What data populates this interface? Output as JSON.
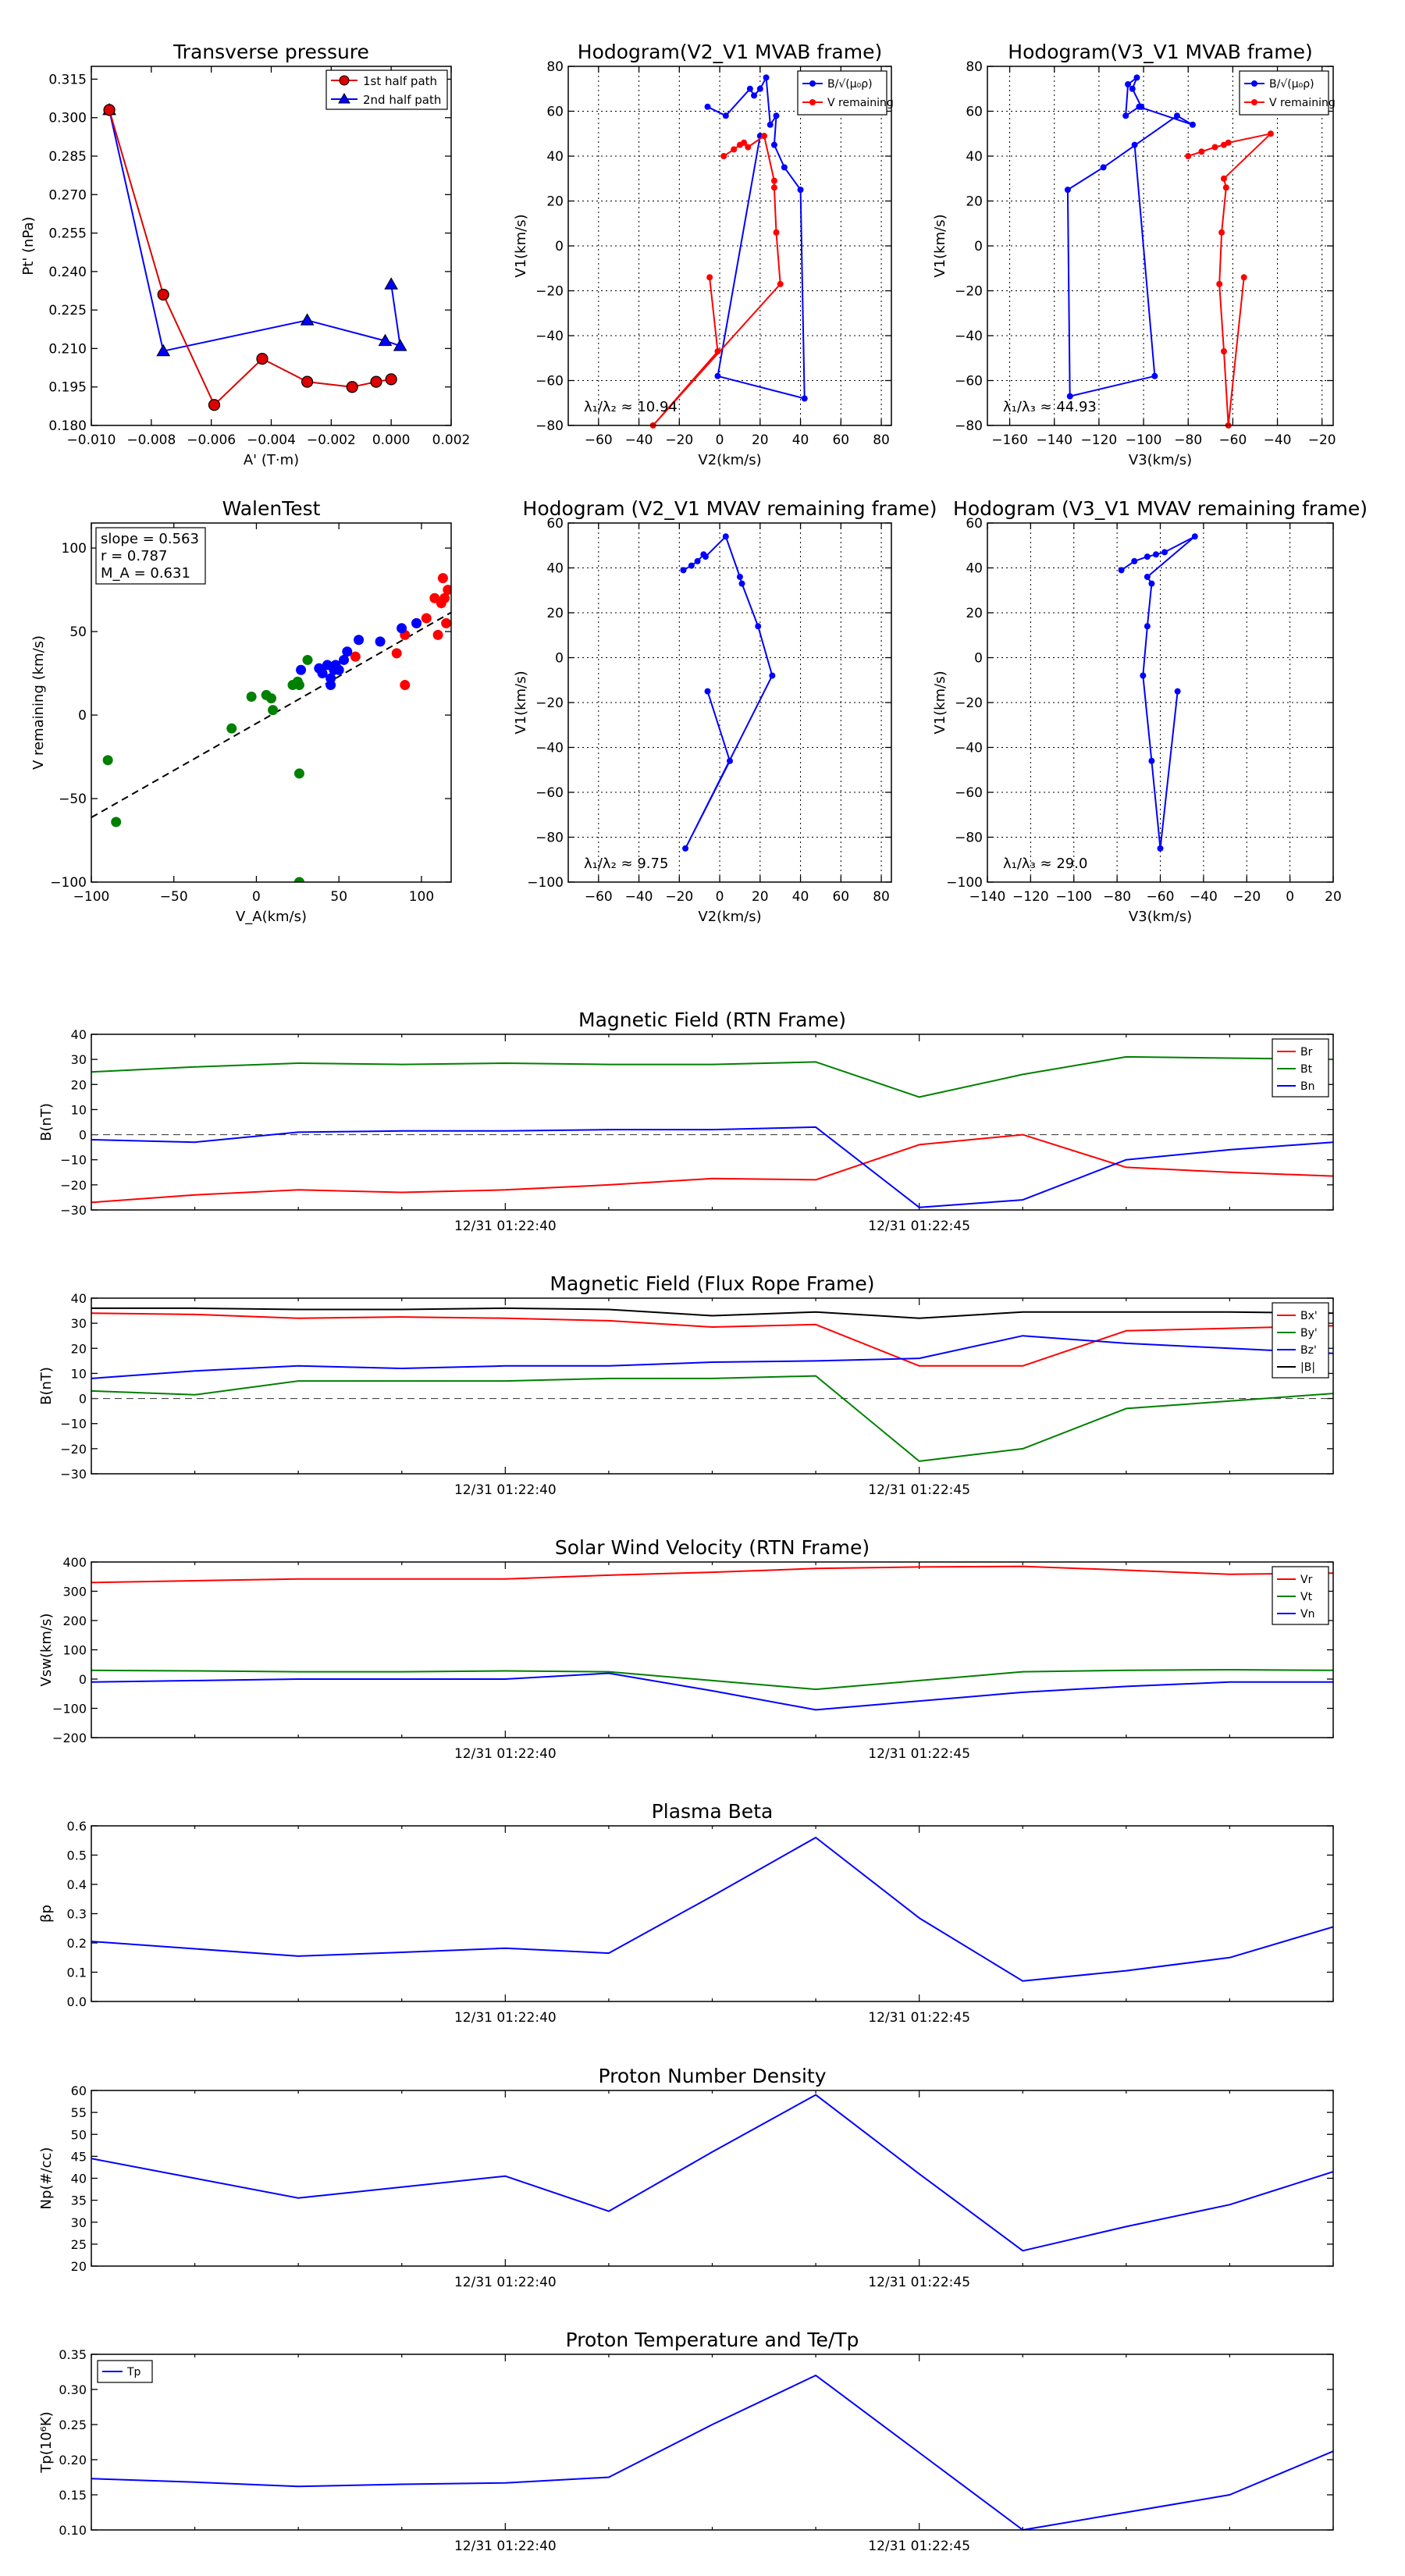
{
  "figure": {
    "colors": {
      "red": "#ff0000",
      "red_bar": "#dd0000",
      "blue": "#0000ff",
      "green": "#008000",
      "black": "#000000"
    }
  },
  "chart_data": [
    {
      "id": "transverse",
      "type": "line",
      "title": "Transverse pressure",
      "xlabel": "A' (T·m)",
      "ylabel": "Pt' (nPa)",
      "xlim": [
        -0.01,
        0.002
      ],
      "ylim": [
        0.18,
        0.32
      ],
      "xticks": [
        -0.01,
        -0.008,
        -0.006,
        -0.004,
        -0.002,
        0.0,
        0.002
      ],
      "xtick_labels": [
        "−0.010",
        "−0.008",
        "−0.006",
        "−0.004",
        "−0.002",
        "0.000",
        "0.002"
      ],
      "yticks": [
        0.18,
        0.195,
        0.21,
        0.225,
        0.24,
        0.255,
        0.27,
        0.285,
        0.3,
        0.315
      ],
      "ytick_labels": [
        "0.180",
        "0.195",
        "0.210",
        "0.225",
        "0.240",
        "0.255",
        "0.270",
        "0.285",
        "0.300",
        "0.315"
      ],
      "legend": [
        "1st half path",
        "2nd half path"
      ],
      "series": [
        {
          "name": "1st half path",
          "color": "red",
          "marker": "circle",
          "x": [
            -0.0094,
            -0.0076,
            -0.0059,
            -0.0043,
            -0.0028,
            -0.0013,
            -0.0005,
            0.0
          ],
          "y": [
            0.303,
            0.231,
            0.188,
            0.206,
            0.197,
            0.195,
            0.197,
            0.198
          ]
        },
        {
          "name": "2nd half path",
          "color": "blue",
          "marker": "triangle",
          "x": [
            -0.0094,
            -0.0076,
            -0.0028,
            -0.0002,
            0.0003,
            0.0
          ],
          "y": [
            0.303,
            0.209,
            0.221,
            0.213,
            0.211,
            0.235
          ]
        }
      ]
    },
    {
      "id": "hodo1",
      "type": "line",
      "title": "Hodogram(V2_V1 MVAB frame)",
      "xlabel": "V2(km/s)",
      "ylabel": "V1(km/s)",
      "xlim": [
        -75,
        85
      ],
      "ylim": [
        -80,
        80
      ],
      "xticks": [
        -60,
        -40,
        -20,
        0,
        20,
        40,
        60,
        80
      ],
      "yticks": [
        -80,
        -60,
        -40,
        -20,
        0,
        20,
        40,
        60,
        80
      ],
      "legend": [
        "B/√(μ₀ρ)",
        "V remaining"
      ],
      "annotation": "λ₁/λ₂ ≈ 10.94",
      "series": [
        {
          "name": "B",
          "color": "blue",
          "marker": "dot",
          "x": [
            -6,
            3,
            15,
            17,
            20,
            23,
            25,
            28,
            27,
            32,
            40,
            42,
            -1,
            20
          ],
          "y": [
            62,
            58,
            70,
            67,
            70,
            75,
            54,
            58,
            45,
            35,
            25,
            -68,
            -58,
            49
          ]
        },
        {
          "name": "V remaining",
          "color": "red",
          "marker": "dot",
          "x": [
            2,
            7,
            10,
            12,
            14,
            22,
            27,
            27,
            28,
            30,
            -33,
            -1,
            -5
          ],
          "y": [
            40,
            43,
            45,
            46,
            44,
            49,
            29,
            26,
            6,
            -17,
            -80,
            -47,
            -14
          ]
        }
      ]
    },
    {
      "id": "hodo2",
      "type": "line",
      "title": "Hodogram(V3_V1 MVAB frame)",
      "xlabel": "V3(km/s)",
      "ylabel": "V1(km/s)",
      "xlim": [
        -170,
        -15
      ],
      "ylim": [
        -80,
        80
      ],
      "xticks": [
        -160,
        -140,
        -120,
        -100,
        -80,
        -60,
        -40,
        -20
      ],
      "xtick_labels": [
        "−160",
        "−140",
        "−120",
        "−100",
        "−80",
        "−60",
        "−40",
        "−20"
      ],
      "yticks": [
        -80,
        -60,
        -40,
        -20,
        0,
        20,
        40,
        60,
        80
      ],
      "legend": [
        "B/√(μ₀ρ)",
        "V remaining"
      ],
      "annotation": "λ₁/λ₃ ≈ 44.93",
      "series": [
        {
          "name": "B",
          "color": "blue",
          "marker": "dot",
          "x": [
            -101,
            -105,
            -103,
            -107,
            -108,
            -102,
            -78,
            -85,
            -118,
            -134,
            -133,
            -95,
            -104
          ],
          "y": [
            62,
            70,
            75,
            72,
            58,
            62,
            54,
            58,
            35,
            25,
            -67,
            -58,
            45
          ]
        },
        {
          "name": "V remaining",
          "color": "red",
          "marker": "dot",
          "x": [
            -80,
            -74,
            -68,
            -64,
            -62,
            -43,
            -64,
            -63,
            -65,
            -66,
            -64,
            -62,
            -55
          ],
          "y": [
            40,
            42,
            44,
            45,
            46,
            50,
            30,
            26,
            6,
            -17,
            -47,
            -80,
            -14
          ]
        }
      ]
    },
    {
      "id": "walen",
      "type": "scatter",
      "title": "WalenTest",
      "xlabel": "V_A(km/s)",
      "ylabel": "V remaining (km/s)",
      "xlim": [
        -100,
        118
      ],
      "ylim": [
        -100,
        115
      ],
      "xticks": [
        -100,
        -50,
        0,
        50,
        100
      ],
      "xtick_labels": [
        "−100",
        "−50",
        "0",
        "50",
        "100"
      ],
      "yticks": [
        -100,
        -50,
        0,
        50,
        100
      ],
      "ytick_labels": [
        "−100",
        "−50",
        "0",
        "50",
        "100"
      ],
      "annotations": [
        "slope = 0.563",
        "r = 0.787",
        "M_A = 0.631"
      ],
      "fit_line": {
        "slope": 0.563,
        "intercept": -5
      },
      "series": [
        {
          "name": "red",
          "color": "red",
          "x": [
            113,
            114,
            116,
            112,
            108,
            103,
            97,
            90,
            85,
            115,
            110,
            60,
            90
          ],
          "y": [
            82,
            70,
            75,
            67,
            70,
            58,
            55,
            48,
            37,
            55,
            48,
            35,
            18
          ]
        },
        {
          "name": "blue",
          "color": "blue",
          "x": [
            27,
            38,
            40,
            43,
            45,
            47,
            48,
            50,
            53,
            55,
            62,
            75,
            88,
            97,
            45
          ],
          "y": [
            27,
            28,
            25,
            30,
            22,
            27,
            30,
            27,
            33,
            38,
            45,
            44,
            52,
            55,
            18
          ]
        },
        {
          "name": "green",
          "color": "green",
          "x": [
            -90,
            -85,
            -15,
            -3,
            6,
            9,
            10,
            22,
            25,
            26,
            31,
            26,
            26
          ],
          "y": [
            -27,
            -64,
            -8,
            11,
            12,
            10,
            3,
            18,
            20,
            18,
            33,
            -35,
            -100
          ]
        }
      ]
    },
    {
      "id": "hodo3",
      "type": "line",
      "title": "Hodogram (V2_V1 MVAV remaining frame)",
      "xlabel": "V2(km/s)",
      "ylabel": "V1(km/s)",
      "xlim": [
        -75,
        85
      ],
      "ylim": [
        -100,
        60
      ],
      "xticks": [
        -60,
        -40,
        -20,
        0,
        20,
        40,
        60,
        80
      ],
      "yticks": [
        -100,
        -80,
        -60,
        -40,
        -20,
        0,
        20,
        40,
        60
      ],
      "annotation": "λ₁/λ₂ ≈ 9.75",
      "series": [
        {
          "name": "V",
          "color": "blue",
          "marker": "dot",
          "x": [
            -18,
            -14,
            -11,
            -8,
            -7,
            3,
            10,
            11,
            19,
            26,
            -17,
            5,
            -6
          ],
          "y": [
            39,
            41,
            43,
            46,
            45,
            54,
            36,
            33,
            14,
            -8,
            -85,
            -46,
            -15
          ]
        }
      ]
    },
    {
      "id": "hodo4",
      "type": "line",
      "title": "Hodogram (V3_V1 MVAV remaining frame)",
      "xlabel": "V3(km/s)",
      "ylabel": "V1(km/s)",
      "xlim": [
        -140,
        20
      ],
      "ylim": [
        -100,
        60
      ],
      "xticks": [
        -140,
        -120,
        -100,
        -80,
        -60,
        -40,
        -20,
        0,
        20
      ],
      "xtick_labels": [
        "−140",
        "−120",
        "−100",
        "−80",
        "−60",
        "−40",
        "−20",
        "0",
        "20"
      ],
      "yticks": [
        -100,
        -80,
        -60,
        -40,
        -20,
        0,
        20,
        40,
        60
      ],
      "annotation": "λ₁/λ₃ ≈ 29.0",
      "series": [
        {
          "name": "V",
          "color": "blue",
          "marker": "dot",
          "x": [
            -78,
            -72,
            -66,
            -62,
            -58,
            -44,
            -66,
            -64,
            -66,
            -68,
            -64,
            -60,
            -52
          ],
          "y": [
            39,
            43,
            45,
            46,
            47,
            54,
            36,
            33,
            14,
            -8,
            -46,
            -85,
            -15
          ]
        }
      ]
    },
    {
      "id": "bfield_rtn",
      "type": "line",
      "title": "Magnetic Field (RTN Frame)",
      "ylabel": "B(nT)",
      "ylim": [
        -30,
        40
      ],
      "yticks": [
        -30,
        -20,
        -10,
        0,
        10,
        20,
        30,
        40
      ],
      "xtick_labels": [
        "12/31 01:22:40",
        "12/31 01:22:45"
      ],
      "zero_line": true,
      "x": [
        0,
        1,
        2,
        3,
        4,
        5,
        6,
        7,
        8,
        9,
        10,
        11,
        12
      ],
      "series": [
        {
          "name": "Br",
          "color": "red",
          "values": [
            -27,
            -24,
            -22,
            -23,
            -22,
            -20,
            -17.5,
            -18,
            -4,
            0,
            -13,
            -15,
            -16.5
          ]
        },
        {
          "name": "Bt",
          "color": "green",
          "values": [
            25,
            27,
            28.5,
            28,
            28.5,
            28,
            28,
            29,
            15,
            24,
            31,
            30.5,
            30
          ]
        },
        {
          "name": "Bn",
          "color": "blue",
          "values": [
            -2,
            -3,
            1,
            1.5,
            1.5,
            2,
            2,
            3,
            -29,
            -26,
            -10,
            -6,
            -3
          ]
        }
      ]
    },
    {
      "id": "bfield_fr",
      "type": "line",
      "title": "Magnetic Field (Flux Rope Frame)",
      "ylabel": "B(nT)",
      "ylim": [
        -30,
        40
      ],
      "yticks": [
        -30,
        -20,
        -10,
        0,
        10,
        20,
        30,
        40
      ],
      "xtick_labels": [
        "12/31 01:22:40",
        "12/31 01:22:45"
      ],
      "zero_line": true,
      "x": [
        0,
        1,
        2,
        3,
        4,
        5,
        6,
        7,
        8,
        9,
        10,
        11,
        12
      ],
      "series": [
        {
          "name": "Bx'",
          "color": "red",
          "values": [
            34,
            33.5,
            32,
            32.5,
            32,
            31,
            28.5,
            29.5,
            13,
            13,
            27,
            28,
            29
          ]
        },
        {
          "name": "By'",
          "color": "green",
          "values": [
            3,
            1.5,
            7,
            7,
            7,
            8,
            8,
            9,
            -25,
            -20,
            -4,
            -1,
            2
          ]
        },
        {
          "name": "Bz'",
          "color": "blue",
          "values": [
            8,
            11,
            13,
            12,
            13,
            13,
            14.5,
            15,
            16,
            25,
            22,
            20,
            18
          ]
        },
        {
          "name": "|B|",
          "color": "black",
          "values": [
            36,
            36,
            35.5,
            35.5,
            36,
            35.5,
            33,
            34.5,
            32,
            34.5,
            34.5,
            34.5,
            34
          ]
        }
      ]
    },
    {
      "id": "vsw",
      "type": "line",
      "title": "Solar Wind Velocity (RTN Frame)",
      "ylabel": "Vsw(km/s)",
      "ylim": [
        -200,
        400
      ],
      "yticks": [
        -200,
        -100,
        0,
        100,
        200,
        300,
        400
      ],
      "xtick_labels": [
        "12/31 01:22:40",
        "12/31 01:22:45"
      ],
      "zero_line": false,
      "x": [
        0,
        1,
        2,
        3,
        4,
        5,
        6,
        7,
        8,
        9,
        10,
        11,
        12
      ],
      "series": [
        {
          "name": "Vr",
          "color": "red",
          "values": [
            330,
            336,
            342,
            342,
            342,
            355,
            365,
            378,
            383,
            385,
            372,
            358,
            362
          ]
        },
        {
          "name": "Vt",
          "color": "green",
          "values": [
            30,
            28,
            25,
            25,
            28,
            25,
            -5,
            -35,
            -5,
            25,
            30,
            32,
            30
          ]
        },
        {
          "name": "Vn",
          "color": "blue",
          "values": [
            -10,
            -5,
            0,
            0,
            0,
            20,
            -40,
            -105,
            -75,
            -45,
            -25,
            -10,
            -10
          ]
        }
      ]
    },
    {
      "id": "beta",
      "type": "line",
      "title": "Plasma Beta",
      "ylabel": "βp",
      "ylim": [
        0,
        0.6
      ],
      "yticks": [
        0,
        0.1,
        0.2,
        0.3,
        0.4,
        0.5,
        0.6
      ],
      "ytick_labels": [
        "0.0",
        "0.1",
        "0.2",
        "0.3",
        "0.4",
        "0.5",
        "0.6"
      ],
      "xtick_labels": [
        "12/31 01:22:40",
        "12/31 01:22:45"
      ],
      "zero_line": false,
      "x": [
        0,
        1,
        2,
        3,
        4,
        5,
        6,
        7,
        8,
        9,
        10,
        11,
        12
      ],
      "series": [
        {
          "name": "beta",
          "color": "blue",
          "values": [
            0.205,
            0.18,
            0.155,
            0.168,
            0.182,
            0.165,
            0.36,
            0.56,
            0.285,
            0.07,
            0.105,
            0.15,
            0.255
          ]
        }
      ]
    },
    {
      "id": "density",
      "type": "line",
      "title": "Proton Number Density",
      "ylabel": "Np(#/cc)",
      "ylim": [
        20,
        60
      ],
      "yticks": [
        20,
        25,
        30,
        35,
        40,
        45,
        50,
        55,
        60
      ],
      "xtick_labels": [
        "12/31 01:22:40",
        "12/31 01:22:45"
      ],
      "zero_line": false,
      "x": [
        0,
        1,
        2,
        3,
        4,
        5,
        6,
        7,
        8,
        9,
        10,
        11,
        12
      ],
      "series": [
        {
          "name": "Np",
          "color": "blue",
          "values": [
            44.5,
            40,
            35.5,
            38,
            40.5,
            32.5,
            46,
            59,
            41,
            23.5,
            29,
            34,
            41.5
          ]
        }
      ]
    },
    {
      "id": "temperature",
      "type": "line",
      "title": "Proton Temperature and Te/Tp",
      "ylabel": "Tp(10⁶K)",
      "ylim": [
        0.1,
        0.35
      ],
      "yticks": [
        0.1,
        0.15,
        0.2,
        0.25,
        0.3,
        0.35
      ],
      "ytick_labels": [
        "0.10",
        "0.15",
        "0.20",
        "0.25",
        "0.30",
        "0.35"
      ],
      "xtick_labels": [
        "12/31 01:22:40",
        "12/31 01:22:45"
      ],
      "zero_line": false,
      "legend": [
        "Tp"
      ],
      "x": [
        0,
        1,
        2,
        3,
        4,
        5,
        6,
        7,
        8,
        9,
        10,
        11,
        12
      ],
      "series": [
        {
          "name": "Tp",
          "color": "blue",
          "values": [
            0.173,
            0.168,
            0.162,
            0.165,
            0.167,
            0.175,
            0.25,
            0.32,
            0.21,
            0.1,
            0.125,
            0.15,
            0.212
          ]
        }
      ]
    }
  ]
}
